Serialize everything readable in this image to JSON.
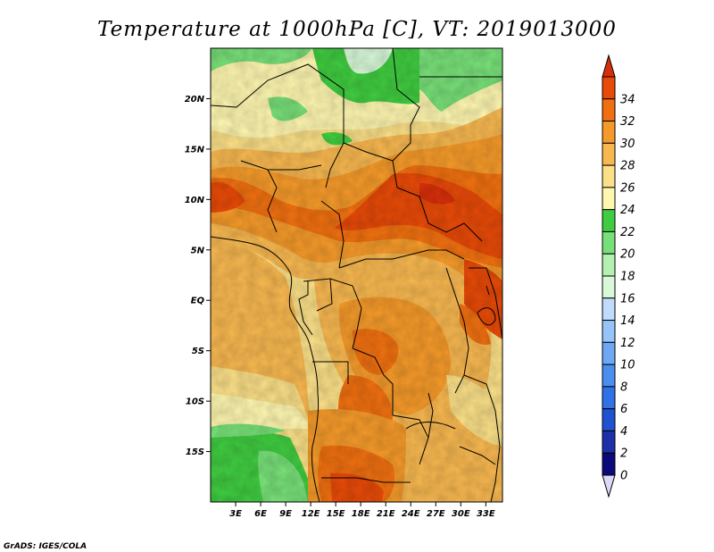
{
  "title": "Temperature at 1000hPa [C], VT: 2019013000",
  "credit": "GrADS: IGES/COLA",
  "map": {
    "lat_range": [
      -20,
      25
    ],
    "lon_range": [
      0,
      35
    ],
    "lat_ticks": [
      "20N",
      "15N",
      "10N",
      "5N",
      "EQ",
      "5S",
      "10S",
      "15S"
    ],
    "lat_values": [
      20,
      15,
      10,
      5,
      0,
      -5,
      -10,
      -15
    ],
    "lon_ticks": [
      "3E",
      "6E",
      "9E",
      "12E",
      "15E",
      "18E",
      "21E",
      "24E",
      "27E",
      "30E",
      "33E"
    ],
    "lon_values": [
      3,
      6,
      9,
      12,
      15,
      18,
      21,
      24,
      27,
      30,
      33
    ]
  },
  "colorbar": {
    "labels": [
      "0",
      "2",
      "4",
      "6",
      "8",
      "10",
      "12",
      "14",
      "16",
      "18",
      "20",
      "22",
      "24",
      "26",
      "28",
      "30",
      "32",
      "34"
    ],
    "colors": [
      "#ddd8f8",
      "#0a0a7a",
      "#1f2fa8",
      "#1f52d0",
      "#2f72e8",
      "#4a8ff0",
      "#6ea8f5",
      "#96c4f8",
      "#c0dcfc",
      "#d8f8d8",
      "#b4f0b0",
      "#78e078",
      "#40cc40",
      "#fff7b0",
      "#fbe088",
      "#f8b850",
      "#f59a2a",
      "#f07010",
      "#e84a08",
      "#d82f0a"
    ]
  }
}
